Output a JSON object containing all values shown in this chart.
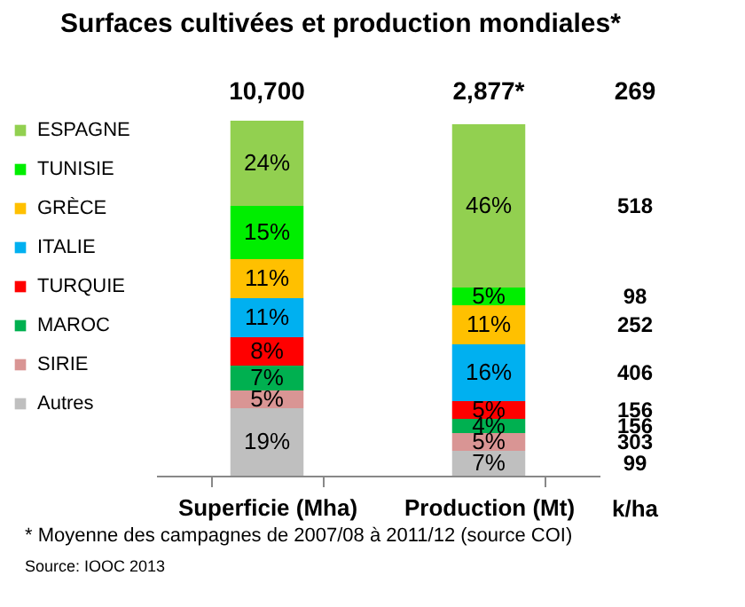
{
  "chart_data": {
    "type": "bar",
    "title": "Surfaces cultivées et production mondiales*",
    "categories": [
      "Superficie (Mha)",
      "Production (Mt)"
    ],
    "stacked": true,
    "grid": false,
    "legend": "left",
    "series": [
      {
        "name": "Autres",
        "color": "#bfbfbf",
        "values": [
          19,
          7
        ],
        "value_labels": [
          "19%",
          "7%"
        ]
      },
      {
        "name": "SIRIE",
        "color": "#d99594",
        "values": [
          5,
          5
        ],
        "value_labels": [
          "5%",
          "5%"
        ]
      },
      {
        "name": "MAROC",
        "color": "#00b050",
        "values": [
          7,
          4
        ],
        "value_labels": [
          "7%",
          "4%"
        ]
      },
      {
        "name": "TURQUIE",
        "color": "#ff0000",
        "values": [
          8,
          5
        ],
        "value_labels": [
          "8%",
          "5%"
        ]
      },
      {
        "name": "ITALIE",
        "color": "#00b0f0",
        "values": [
          11,
          16
        ],
        "value_labels": [
          "11%",
          "16%"
        ]
      },
      {
        "name": "GRÈCE",
        "color": "#ffc000",
        "values": [
          11,
          11
        ],
        "value_labels": [
          "11%",
          "11%"
        ]
      },
      {
        "name": "TUNISIE",
        "color": "#00ee00",
        "values": [
          15,
          5
        ],
        "value_labels": [
          "15%",
          "5%"
        ]
      },
      {
        "name": "ESPAGNE",
        "color": "#92d050",
        "values": [
          24,
          46
        ],
        "value_labels": [
          "24%",
          "46%"
        ]
      }
    ],
    "annotations": [
      "10,700",
      "2,877*",
      "269",
      "518",
      "98",
      "252",
      "406",
      "156",
      "156",
      "303",
      "99",
      "k/ha",
      "* Moyenne des campagnes de 2007/08 à 2011/12 (source COI)",
      "Source: IOOC 2013"
    ]
  }
}
